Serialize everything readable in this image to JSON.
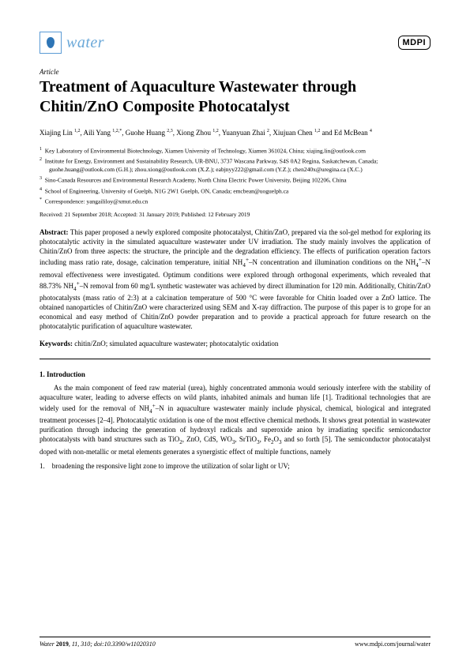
{
  "header": {
    "journal_name": "water",
    "publisher_logo": "MDPI"
  },
  "article_type": "Article",
  "title": "Treatment of Aquaculture Wastewater through Chitin/ZnO Composite Photocatalyst",
  "authors_html": "Xiajing Lin <sup>1,2</sup>, Aili Yang <sup>1,2,*</sup>, Guohe Huang <sup>2,3</sup>, Xiong Zhou <sup>1,2</sup>, Yuanyuan Zhai <sup>2</sup>, Xiujuan Chen <sup>1,2</sup> and Ed McBean <sup>4</sup>",
  "affiliations": [
    "<sup>1</sup>&nbsp;&nbsp;Key Laboratory of Environmental Biotechnology, Xiamen University of Technology, Xiamen 361024, China; xiajing.lin@outlook.com",
    "<sup>2</sup>&nbsp;&nbsp;Institute for Energy, Environment and Sustainability Research, UR-BNU, 3737 Wascana Parkway, S4S 0A2 Regina, Saskatchewan, Canada; guohe.huang@outlook.com (G.H.); zhou.xiong@outlook.com (X.Z.); eabjnyy222@gmail.com (Y.Z.); chen240x@uregina.ca (X.C.)",
    "<sup>3</sup>&nbsp;&nbsp;Sino-Canada Resources and Environmental Research Academy, North China Electric Power University, Beijing 102206, China",
    "<sup>4</sup>&nbsp;&nbsp;School of Engineering, University of Guelph, N1G 2W1 Guelph, ON, Canada; emcbean@uoguelph.ca",
    "<sup>*</sup>&nbsp;&nbsp;Correspondence: yangaililoy@xmut.edu.cn"
  ],
  "dates": "Received: 21 September 2018; Accepted: 31 January 2019; Published: 12 February 2019",
  "abstract_label": "Abstract:",
  "abstract_text": "This paper proposed a newly explored composite photocatalyst, Chitin/ZnO, prepared via the sol-gel method for exploring its photocatalytic activity in the simulated aquaculture wastewater under UV irradiation. The study mainly involves the application of Chitin/ZnO from three aspects: the structure, the principle and the degradation efficiency. The effects of purification operation factors including mass ratio rate, dosage, calcination temperature, initial NH4+–N concentration and illumination conditions on the NH4+–N removal effectiveness were investigated. Optimum conditions were explored through orthogonal experiments, which revealed that 88.73% NH4+–N removal from 60 mg/L synthetic wastewater was achieved by direct illumination for 120 min. Additionally, Chitin/ZnO photocatalysts (mass ratio of 2:3) at a calcination temperature of 500 °C were favorable for Chitin loaded over a ZnO lattice. The obtained nanoparticles of Chitin/ZnO were characterized using SEM and X-ray diffraction. The purpose of this paper is to grope for an economical and easy method of Chitin/ZnO powder preparation and to provide a practical approach for future research on the photocatalytic purification of aquaculture wastewater.",
  "keywords_label": "Keywords:",
  "keywords_text": "chitin/ZnO; simulated aquaculture wastewater; photocatalytic oxidation",
  "section1_heading": "1. Introduction",
  "section1_para": "As the main component of feed raw material (urea), highly concentrated ammonia would seriously interfere with the stability of aquaculture water, leading to adverse effects on wild plants, inhabited animals and human life [1]. Traditional technologies that are widely used for the removal of NH4+–N in aquaculture wastewater mainly include physical, chemical, biological and integrated treatment processes [2–4]. Photocatalytic oxidation is one of the most effective chemical methods. It shows great potential in wastewater purification through inducing the generation of hydroxyl radicals and superoxide anion by irradiating specific semiconductor photocatalysts with band structures such as TiO2, ZnO, CdS, WO3, SrTiO3, Fe2O3 and so forth [5]. The semiconductor photocatalyst doped with non-metallic or metal elements generates a synergistic effect of multiple functions, namely",
  "list_item_1": "1.&nbsp;&nbsp;&nbsp;&nbsp;broadening the responsive light zone to improve the utilization of solar light or UV;",
  "footer": {
    "left": "Water 2019, 11, 310; doi:10.3390/w11020310",
    "right": "www.mdpi.com/journal/water"
  },
  "colors": {
    "journal_color": "#6aa8d8",
    "logo_border": "#5b9bd5",
    "drop_fill": "#2e75b6",
    "text": "#000000",
    "background": "#ffffff"
  },
  "typography": {
    "title_fontsize": 20,
    "body_fontsize": 9,
    "affil_fontsize": 7.5,
    "footer_fontsize": 8
  }
}
